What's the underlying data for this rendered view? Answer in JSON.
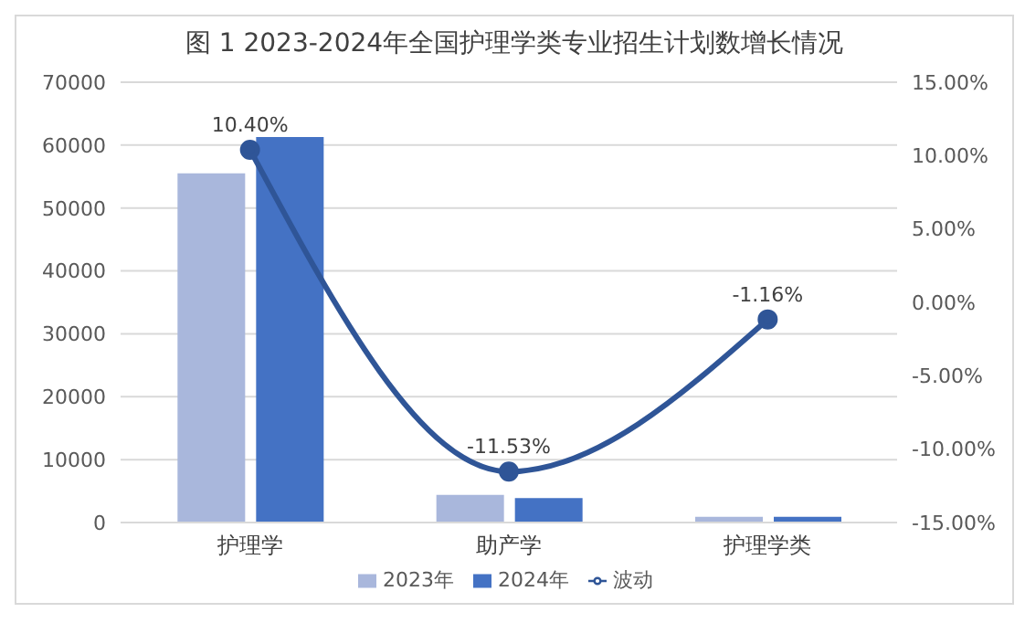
{
  "chart_data": {
    "type": "bar",
    "title": "图 1 2023-2024年全国护理学类专业招生计划数增长情况",
    "categories": [
      "护理学",
      "助产学",
      "护理学类"
    ],
    "series": [
      {
        "name": "2023年",
        "color": "#a9b7dc",
        "values": [
          55500,
          4400,
          900
        ]
      },
      {
        "name": "2024年",
        "color": "#4472c4",
        "values": [
          61300,
          3900,
          900
        ]
      },
      {
        "name": "波动",
        "type": "line",
        "axis": "y2",
        "color": "#2f5597",
        "values": [
          10.4,
          -11.53,
          -1.16
        ],
        "value_labels": [
          "10.40%",
          "-11.53%",
          "-1.16%"
        ],
        "marker": "circle"
      }
    ],
    "ylim": [
      0,
      70000
    ],
    "yticks": [
      0,
      10000,
      20000,
      30000,
      40000,
      50000,
      60000,
      70000
    ],
    "y2lim": [
      -15,
      15
    ],
    "y2ticks": [
      {
        "value": -15,
        "label": "-15.00%"
      },
      {
        "value": -10,
        "label": "-10.00%"
      },
      {
        "value": -5,
        "label": "-5.00%"
      },
      {
        "value": 0,
        "label": "0.00%"
      },
      {
        "value": 5,
        "label": "5.00%"
      },
      {
        "value": 10,
        "label": "10.00%"
      },
      {
        "value": 15,
        "label": "15.00%"
      }
    ],
    "grid": "y",
    "legend": "bottom"
  }
}
